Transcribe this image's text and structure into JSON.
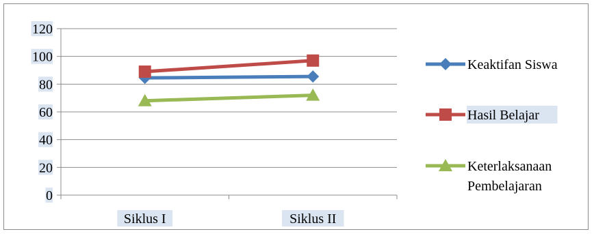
{
  "chart_data": {
    "type": "line",
    "title": "",
    "xlabel": "",
    "ylabel": "",
    "categories": [
      "Siklus I",
      "Siklus II"
    ],
    "ylim": [
      0,
      120
    ],
    "yticks": [
      0,
      20,
      40,
      60,
      80,
      100,
      120
    ],
    "grid": true,
    "legend_position": "right",
    "series": [
      {
        "name": "Keaktifan Siswa",
        "values": [
          84.5,
          85.5
        ],
        "color": "#4a7ebb",
        "marker": "diamond"
      },
      {
        "name": "Hasil Belajar",
        "values": [
          89,
          97
        ],
        "color": "#be4b48",
        "marker": "square"
      },
      {
        "name": "Keterlaksanaan Pembelajaran",
        "legend_lines": [
          "Keterlaksanaan",
          "Pembelajaran"
        ],
        "values": [
          68,
          72
        ],
        "color": "#98b954",
        "marker": "triangle"
      }
    ]
  }
}
